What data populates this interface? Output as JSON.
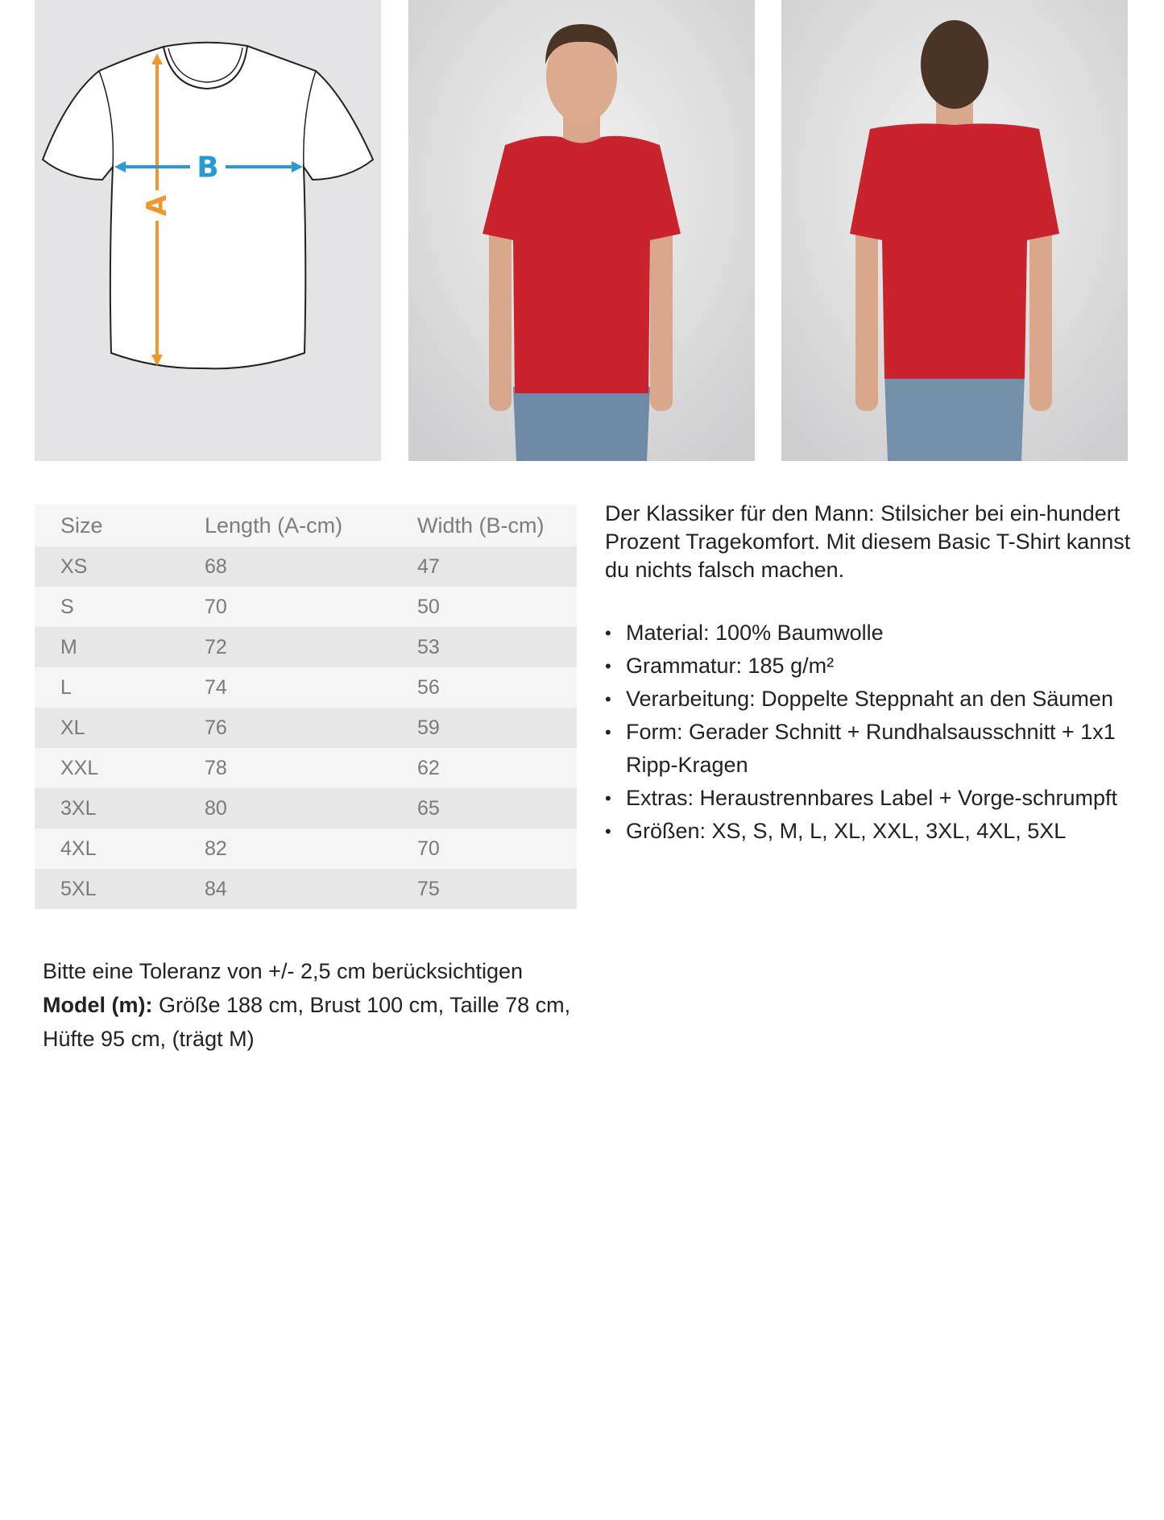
{
  "images": {
    "size_diagram": {
      "label_a": "A",
      "label_b": "B",
      "color_a": "#f0962e",
      "color_b": "#2a9ad4"
    },
    "front_photo": {
      "shirt_color": "#c9242e"
    },
    "back_photo": {
      "shirt_color": "#c9242e"
    }
  },
  "size_table": {
    "headers": [
      "Size",
      "Length (A-cm)",
      "Width (B-cm)"
    ],
    "rows": [
      [
        "XS",
        "68",
        "47"
      ],
      [
        "S",
        "70",
        "50"
      ],
      [
        "M",
        "72",
        "53"
      ],
      [
        "L",
        "74",
        "56"
      ],
      [
        "XL",
        "76",
        "59"
      ],
      [
        "XXL",
        "78",
        "62"
      ],
      [
        "3XL",
        "80",
        "65"
      ],
      [
        "4XL",
        "82",
        "70"
      ],
      [
        "5XL",
        "84",
        "75"
      ]
    ]
  },
  "description": {
    "intro": "Der Klassiker für den Mann: Stilsicher bei ein-hundert Prozent Tragekomfort. Mit diesem Basic T-Shirt kannst du nichts falsch machen.",
    "bullets": [
      "Material: 100% Baumwolle",
      "Grammatur: 185 g/m²",
      "Verarbeitung: Doppelte Steppnaht an den Säumen",
      "Form: Gerader Schnitt + Rundhalsausschnitt + 1x1 Ripp-Kragen",
      "Extras: Heraustrennbares Label + Vorge-schrumpft",
      "Größen: XS, S, M, L, XL, XXL, 3XL, 4XL, 5XL"
    ]
  },
  "notes": {
    "tolerance": "Bitte eine Toleranz von +/- 2,5 cm berücksichtigen",
    "model_label": "Model (m):",
    "model_text": " Größe 188 cm, Brust 100 cm, Taille 78 cm, Hüfte 95 cm, (trägt M)"
  }
}
